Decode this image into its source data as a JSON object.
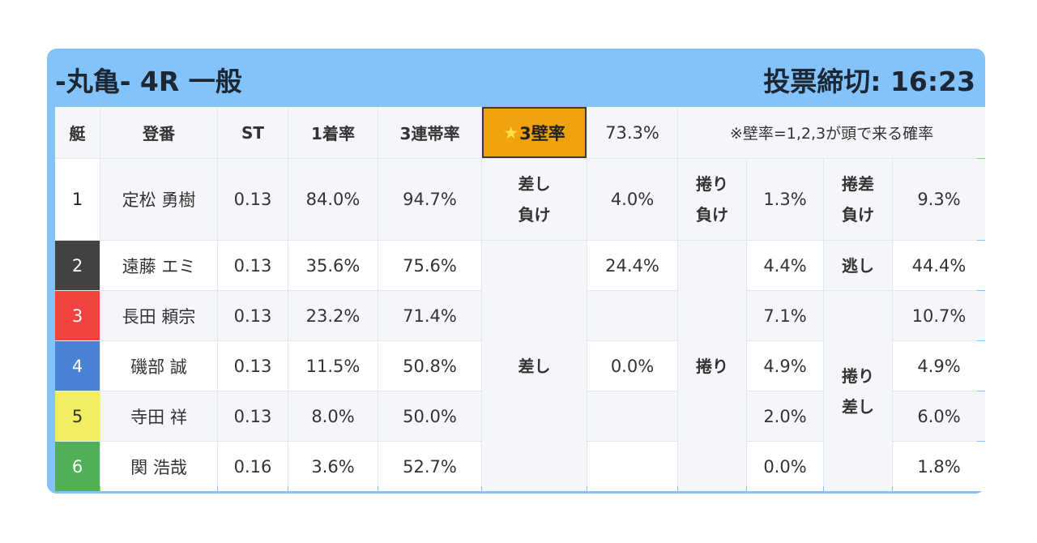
{
  "race": {
    "title": "-丸亀- 4R 一般",
    "deadline": "投票締切: 16:23"
  },
  "headers": {
    "frame": "艇",
    "register": "登番",
    "st": "ST",
    "win_rate": "1着率",
    "trio_rate": "3連帯率",
    "wall_star": "★",
    "wall_label": "3壁率",
    "wall_value": "73.3%",
    "wall_note": "※壁率=1,2,3が頭で来る確率"
  },
  "frame_colors": [
    "#ffffff",
    "#424242",
    "#f0433f",
    "#4a83d4",
    "#f2ee62",
    "#4fb058"
  ],
  "racers": [
    {
      "frame": "1",
      "name": "定松 勇樹",
      "st": "0.13",
      "win": "84.0%",
      "trio": "94.7%"
    },
    {
      "frame": "2",
      "name": "遠藤 エミ",
      "st": "0.13",
      "win": "35.6%",
      "trio": "75.6%"
    },
    {
      "frame": "3",
      "name": "長田 頼宗",
      "st": "0.13",
      "win": "23.2%",
      "trio": "71.4%"
    },
    {
      "frame": "4",
      "name": "磯部 誠",
      "st": "0.13",
      "win": "11.5%",
      "trio": "50.8%"
    },
    {
      "frame": "5",
      "name": "寺田 祥",
      "st": "0.13",
      "win": "8.0%",
      "trio": "50.0%"
    },
    {
      "frame": "6",
      "name": "関 浩哉",
      "st": "0.16",
      "win": "3.6%",
      "trio": "52.7%"
    }
  ],
  "patterns": {
    "sashi_make": {
      "l1": "差し",
      "l2": "負け",
      "value": "4.0%"
    },
    "makuri_make": {
      "l1": "捲り",
      "l2": "負け",
      "value": "1.3%"
    },
    "makurisashi_make": {
      "l1": "捲差",
      "l2": "負け",
      "value": "9.3%"
    },
    "sashi": {
      "label": "差し",
      "values": [
        "24.4%",
        "",
        "0.0%",
        "",
        ""
      ]
    },
    "makuri": {
      "label": "捲り",
      "values": [
        "4.4%",
        "7.1%",
        "4.9%",
        "2.0%",
        "0.0%"
      ]
    },
    "nige": {
      "label": "逃し",
      "value": "44.4%"
    },
    "makurisashi": {
      "l1": "捲り",
      "l2": "差し",
      "values": [
        "10.7%",
        "4.9%",
        "6.0%",
        "1.8%"
      ]
    }
  }
}
